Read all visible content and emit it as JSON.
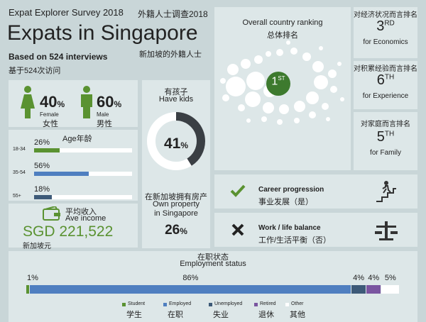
{
  "header": {
    "survey_en": "Expat Explorer Survey 2018",
    "survey_cn": "外籍人士调查2018",
    "title": "Expats in Singapore",
    "title_cn": "新加坡的外籍人士",
    "interviews_en": "Based on 524 interviews",
    "interviews_cn": "基于524次访问"
  },
  "gender": {
    "female_pct": "40",
    "female_en": "Female",
    "female_cn": "女性",
    "male_pct": "60",
    "male_en": "Male",
    "male_cn": "男性",
    "pct_sign": "%"
  },
  "age": {
    "title": "Age年龄",
    "groups": [
      {
        "label": "18-34",
        "value": "26%",
        "fraction": 0.26,
        "color": "#5a9231"
      },
      {
        "label": "35-54",
        "value": "56%",
        "fraction": 0.56,
        "color": "#4f7fc0"
      },
      {
        "label": "55+",
        "value": "18%",
        "fraction": 0.18,
        "color": "#3d5a78"
      }
    ]
  },
  "income": {
    "label_cn": "平均收入",
    "label_en": "Ave income",
    "value": "SGD 221,522",
    "currency_cn": "新加坡元"
  },
  "kids": {
    "label_cn": "有孩子",
    "label_en": "Have kids",
    "value": "41",
    "fraction": 0.41,
    "pct_sign": "%"
  },
  "property": {
    "label_cn": "在新加坡拥有房产",
    "label_en_1": "Own property",
    "label_en_2": "in Singapore",
    "value": "26",
    "pct_sign": "%"
  },
  "ranking": {
    "title_en": "Overall country ranking",
    "title_cn": "总体排名",
    "overall": "1",
    "overall_suffix": "ST",
    "economics_cn": "对经济状况而言排名",
    "economics_rank": "3",
    "economics_suffix": "RD",
    "economics_en": "for Economics",
    "experience_cn": "对积累经验而言排名",
    "experience_rank": "6",
    "experience_suffix": "TH",
    "experience_en": "for Experience",
    "family_cn": "对家庭而言排名",
    "family_rank": "5",
    "family_suffix": "TH",
    "family_en": "for Family"
  },
  "career": {
    "label_en": "Career progression",
    "label_cn": "事业发展（是）",
    "icon": "check-icon"
  },
  "balance": {
    "label_en": "Work / life balance",
    "label_cn": "工作/生活平衡（否）",
    "icon": "cross-icon"
  },
  "employment": {
    "title_cn": "在职状态",
    "title_en": "Employment status",
    "segments": [
      {
        "value": "1%",
        "fraction": 0.01,
        "color": "#5a9231"
      },
      {
        "value": "86%",
        "fraction": 0.86,
        "color": "#4f7fc0"
      },
      {
        "value": "4%",
        "fraction": 0.04,
        "color": "#3d5a78"
      },
      {
        "value": "4%",
        "fraction": 0.04,
        "color": "#7a55a0"
      },
      {
        "value": "5%",
        "fraction": 0.05,
        "color": "#ffffff"
      }
    ],
    "legend": [
      {
        "en": "Student",
        "cn": "学生",
        "color": "#5a9231"
      },
      {
        "en": "Employed",
        "cn": "在职",
        "color": "#4f7fc0"
      },
      {
        "en": "Unemployed",
        "cn": "失业",
        "color": "#3d5a78"
      },
      {
        "en": "Retired",
        "cn": "退休",
        "color": "#7a55a0"
      },
      {
        "en": "Other",
        "cn": "其他",
        "color": "#ffffff"
      }
    ]
  }
}
